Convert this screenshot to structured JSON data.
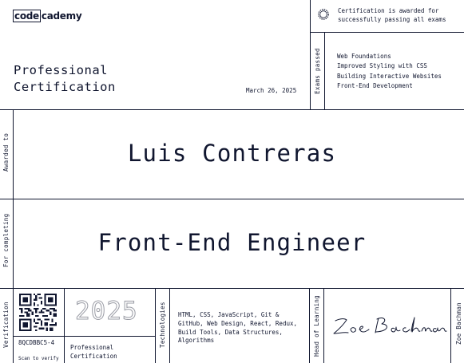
{
  "header": {
    "logo": {
      "part1": "code",
      "part2": "cademy"
    },
    "title_line1": "Professional",
    "title_line2": "Certification",
    "date": "March 26, 2025"
  },
  "award_note": {
    "line1": "Certification is awarded for",
    "line2": "successfully passing all exams"
  },
  "exams": {
    "label": "Exams passed",
    "items": [
      "Web Foundations",
      "Improved Styling with CSS",
      "Building Interactive Websites",
      "Front-End Development"
    ]
  },
  "recipient": {
    "label": "Awarded to",
    "name": "Luis Contreras"
  },
  "completion": {
    "label": "For completing",
    "course": "Front-End Engineer"
  },
  "footer": {
    "verification_label": "Verification",
    "code": "8QCDBBC5-4",
    "scan_text": "Scan to verify",
    "year": "2025",
    "cert_line1": "Professional",
    "cert_line2": "Certification",
    "technologies_label": "Technologies",
    "technologies_lines": [
      "HTML, CSS, JavaScript, Git &",
      "GitHub, Web Design, React, Redux,",
      "Build Tools, Data Structures,",
      "Algorithms"
    ],
    "signer_role": "Head of Learning",
    "signer_name": "Zoe Bachman"
  },
  "colors": {
    "ink": "#10162f",
    "year_outline": "#9a9ca5",
    "background": "#ffffff"
  }
}
